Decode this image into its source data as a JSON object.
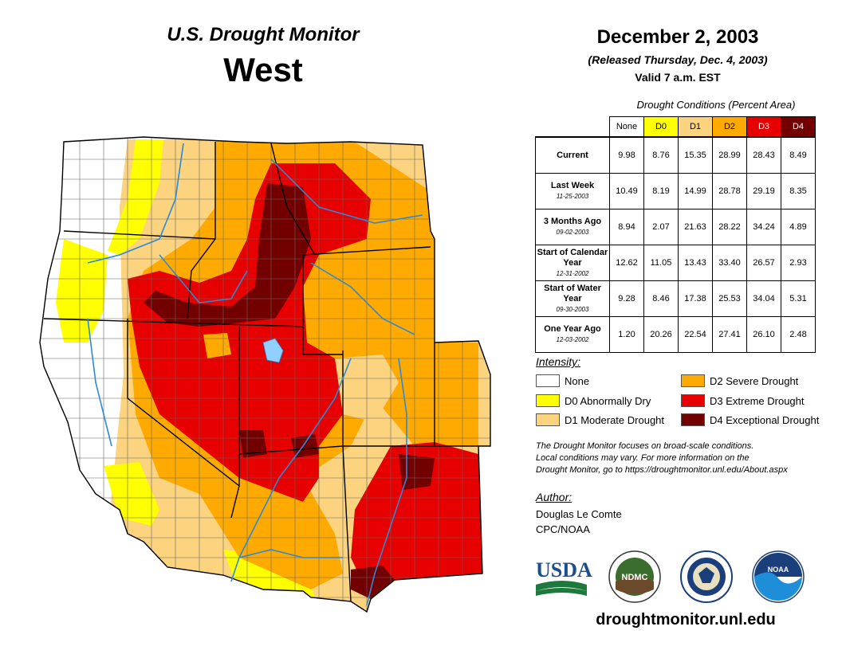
{
  "header": {
    "title": "U.S. Drought Monitor",
    "region": "West",
    "date": "December 2, 2003",
    "released": "(Released Thursday, Dec. 4, 2003)",
    "valid": "Valid 7 a.m. EST"
  },
  "table": {
    "caption": "Drought Conditions (Percent Area)",
    "columns": [
      "None",
      "D0",
      "D1",
      "D2",
      "D3",
      "D4"
    ],
    "rows": [
      {
        "label": "Current",
        "sublabel": "",
        "values": [
          "9.98",
          "8.76",
          "15.35",
          "28.99",
          "28.43",
          "8.49"
        ]
      },
      {
        "label": "Last Week",
        "sublabel": "11-25-2003",
        "values": [
          "10.49",
          "8.19",
          "14.99",
          "28.78",
          "29.19",
          "8.35"
        ]
      },
      {
        "label": "3 Months Ago",
        "sublabel": "09-02-2003",
        "values": [
          "8.94",
          "2.07",
          "21.63",
          "28.22",
          "34.24",
          "4.89"
        ]
      },
      {
        "label": "Start of Calendar Year",
        "sublabel": "12-31-2002",
        "values": [
          "12.62",
          "11.05",
          "13.43",
          "33.40",
          "26.57",
          "2.93"
        ]
      },
      {
        "label": "Start of Water Year",
        "sublabel": "09-30-2003",
        "values": [
          "9.28",
          "8.46",
          "17.38",
          "25.53",
          "34.04",
          "5.31"
        ]
      },
      {
        "label": "One Year Ago",
        "sublabel": "12-03-2002",
        "values": [
          "1.20",
          "20.26",
          "22.54",
          "27.41",
          "26.10",
          "2.48"
        ]
      }
    ]
  },
  "legend": {
    "heading": "Intensity:",
    "items": [
      {
        "label": "None",
        "color": "#ffffff"
      },
      {
        "label": "D0 Abnormally Dry",
        "color": "#ffff00"
      },
      {
        "label": "D1 Moderate Drought",
        "color": "#fcd37f"
      },
      {
        "label": "D2 Severe Drought",
        "color": "#ffaa00"
      },
      {
        "label": "D3 Extreme Drought",
        "color": "#e60000"
      },
      {
        "label": "D4 Exceptional Drought",
        "color": "#730000"
      }
    ]
  },
  "note": {
    "line1": "The Drought Monitor focuses on broad-scale conditions.",
    "line2": "Local conditions may vary. For more information on the",
    "line3": "Drought Monitor, go to https://droughtmonitor.unl.edu/About.aspx"
  },
  "author": {
    "heading": "Author:",
    "name": "Douglas Le Comte",
    "org": "CPC/NOAA"
  },
  "logos": {
    "usda": "USDA",
    "ndmc": "NDMC",
    "noaa": "NOAA"
  },
  "website": "droughtmonitor.unl.edu"
}
